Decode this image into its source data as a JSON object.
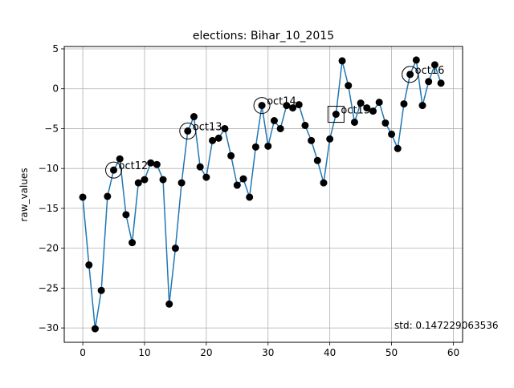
{
  "chart_data": {
    "type": "line",
    "title": "elections: Bihar_10_2015",
    "xlabel": "",
    "ylabel": "raw_values",
    "xlim": [
      -3,
      61.5
    ],
    "ylim": [
      -31.8,
      5.3
    ],
    "xticks": [
      0,
      10,
      20,
      30,
      40,
      50,
      60
    ],
    "yticks": [
      5,
      0,
      -5,
      -10,
      -15,
      -20,
      -25,
      -30
    ],
    "xtick_labels": [
      "0",
      "10",
      "20",
      "30",
      "40",
      "50",
      "60"
    ],
    "ytick_labels": [
      "5",
      "0",
      "−5",
      "−10",
      "−15",
      "−20",
      "−25",
      "−30"
    ],
    "grid": true,
    "line_color": "#1f77b4",
    "marker_color": "#000000",
    "x": [
      0,
      1,
      2,
      3,
      4,
      5,
      6,
      7,
      8,
      9,
      10,
      11,
      12,
      13,
      14,
      15,
      16,
      17,
      18,
      19,
      20,
      21,
      22,
      23,
      24,
      25,
      26,
      27,
      28,
      29,
      30,
      31,
      32,
      33,
      34,
      35,
      36,
      37,
      38,
      39,
      40,
      41,
      42,
      43,
      44,
      45,
      46,
      47,
      48,
      49,
      50,
      51,
      52,
      53,
      54,
      55,
      56,
      57,
      58
    ],
    "y": [
      -13.6,
      -22.1,
      -30.1,
      -25.3,
      -13.5,
      -10.2,
      -8.8,
      -15.8,
      -19.3,
      -11.8,
      -11.4,
      -9.3,
      -9.5,
      -11.4,
      -27.0,
      -20.0,
      -11.8,
      -5.3,
      -3.5,
      -9.8,
      -11.1,
      -6.5,
      -6.2,
      -5.0,
      -8.4,
      -12.1,
      -11.3,
      -13.6,
      -7.3,
      -2.1,
      -7.2,
      -4.0,
      -5.0,
      -2.1,
      -2.4,
      -2.0,
      -4.6,
      -6.5,
      -9.0,
      -11.8,
      -6.3,
      -3.2,
      3.5,
      0.4,
      -4.2,
      -1.8,
      -2.4,
      -2.8,
      -1.7,
      -4.3,
      -5.7,
      -7.5,
      -1.9,
      1.8,
      3.6,
      -2.1,
      0.9,
      3.0,
      0.7
    ],
    "annotations": [
      {
        "x": 5,
        "y": -10.2,
        "text": "oct12",
        "marker": "circle"
      },
      {
        "x": 17,
        "y": -5.3,
        "text": "oct13",
        "marker": "circle"
      },
      {
        "x": 29,
        "y": -2.1,
        "text": "oct14",
        "marker": "circle"
      },
      {
        "x": 41,
        "y": -3.2,
        "text": "oct15",
        "marker": "square"
      },
      {
        "x": 53,
        "y": 1.8,
        "text": "oct16",
        "marker": "circle"
      }
    ],
    "note": "std: 0.147229063536"
  }
}
